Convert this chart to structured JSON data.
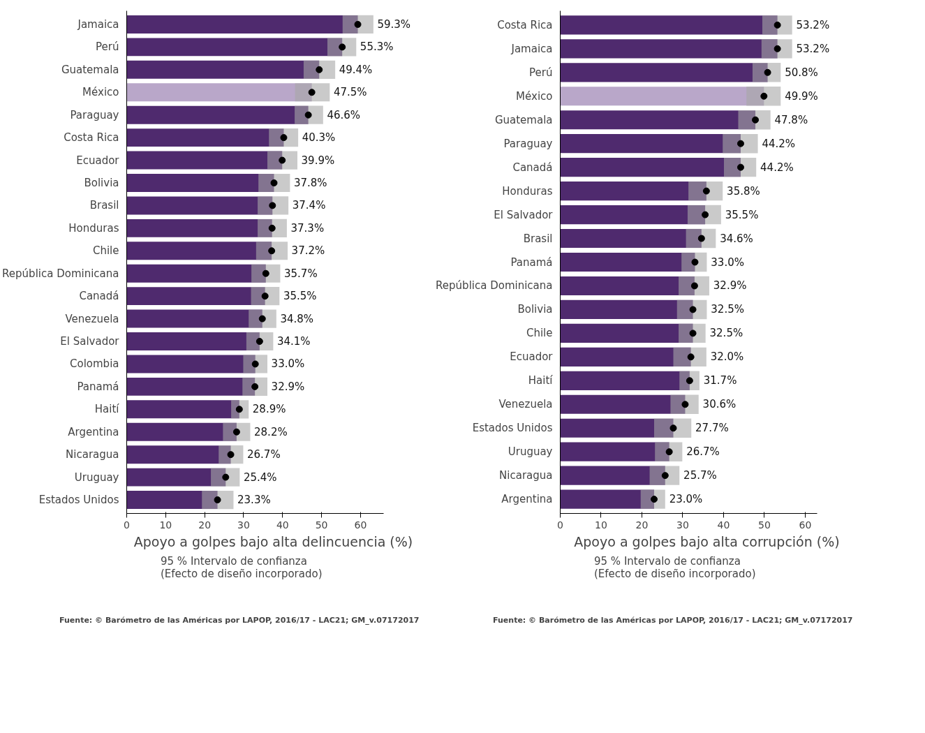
{
  "chart_data": [
    {
      "type": "bar",
      "orientation": "horizontal",
      "xlabel": "Apoyo a golpes bajo alta delincuencia (%)",
      "legend_title": "95 % Intervalo de confianza\n(Efecto de diseño incorporado)",
      "xlim": [
        0,
        66
      ],
      "xticks": [
        0,
        10,
        20,
        30,
        40,
        50,
        60
      ],
      "grid": false,
      "categories": [
        "Jamaica",
        "Perú",
        "Guatemala",
        "México",
        "Paraguay",
        "Costa Rica",
        "Ecuador",
        "Bolivia",
        "Brasil",
        "Honduras",
        "Chile",
        "República Dominicana",
        "Canadá",
        "Venezuela",
        "El Salvador",
        "Colombia",
        "Panamá",
        "Haití",
        "Argentina",
        "Nicaragua",
        "Uruguay",
        "Estados Unidos"
      ],
      "series": [
        {
          "type": "bar",
          "values": [
            59.3,
            55.3,
            49.4,
            47.5,
            46.6,
            40.3,
            39.9,
            37.8,
            37.4,
            37.3,
            37.2,
            35.7,
            35.5,
            34.8,
            34.1,
            33.0,
            32.9,
            28.9,
            28.2,
            26.7,
            25.4,
            23.3
          ],
          "value_labels": [
            "59.3%",
            "55.3%",
            "49.4%",
            "47.5%",
            "46.6%",
            "40.3%",
            "39.9%",
            "37.8%",
            "37.4%",
            "37.3%",
            "37.2%",
            "35.7%",
            "35.5%",
            "34.8%",
            "34.1%",
            "33.0%",
            "32.9%",
            "28.9%",
            "28.2%",
            "26.7%",
            "25.4%",
            "23.3%"
          ],
          "errors": [
            [
              55.4,
              63.3
            ],
            [
              51.5,
              58.9
            ],
            [
              45.4,
              53.5
            ],
            [
              43.2,
              52.1
            ],
            [
              43.1,
              50.4
            ],
            [
              36.5,
              44.0
            ],
            [
              36.1,
              43.8
            ],
            [
              33.8,
              41.9
            ],
            [
              33.6,
              41.5
            ],
            [
              33.6,
              41.1
            ],
            [
              33.2,
              41.3
            ],
            [
              32.0,
              39.4
            ],
            [
              31.9,
              39.2
            ],
            [
              31.3,
              38.4
            ],
            [
              30.7,
              37.6
            ],
            [
              29.9,
              36.1
            ],
            [
              29.7,
              36.1
            ],
            [
              26.8,
              31.3
            ],
            [
              24.7,
              31.7
            ],
            [
              23.6,
              29.9
            ],
            [
              21.6,
              29.0
            ],
            [
              19.3,
              27.4
            ]
          ],
          "colors": [
            "#4f2a6e",
            "#4f2a6e",
            "#4f2a6e",
            "#b9a7c9",
            "#4f2a6e",
            "#4f2a6e",
            "#4f2a6e",
            "#4f2a6e",
            "#4f2a6e",
            "#4f2a6e",
            "#4f2a6e",
            "#4f2a6e",
            "#4f2a6e",
            "#4f2a6e",
            "#4f2a6e",
            "#4f2a6e",
            "#4f2a6e",
            "#4f2a6e",
            "#4f2a6e",
            "#4f2a6e",
            "#4f2a6e",
            "#4f2a6e"
          ]
        },
        {
          "type": "scatter",
          "marker": "circle",
          "color": "#000000",
          "values": [
            59.3,
            55.3,
            49.4,
            47.5,
            46.6,
            40.3,
            39.9,
            37.8,
            37.4,
            37.3,
            37.2,
            35.7,
            35.5,
            34.8,
            34.1,
            33.0,
            32.9,
            28.9,
            28.2,
            26.7,
            25.4,
            23.3
          ]
        }
      ],
      "annotations": [
        "Fuente: © Barómetro de las Américas por LAPOP, 2016/17 - LAC21; GM_v.07172017"
      ]
    },
    {
      "type": "bar",
      "orientation": "horizontal",
      "xlabel": "Apoyo a golpes bajo alta corrupción (%)",
      "legend_title": "95 % Intervalo de confianza\n(Efecto de diseño incorporado)",
      "xlim": [
        0,
        63
      ],
      "xticks": [
        0,
        10,
        20,
        30,
        40,
        50,
        60
      ],
      "grid": false,
      "categories": [
        "Costa Rica",
        "Jamaica",
        "Perú",
        "México",
        "Guatemala",
        "Paraguay",
        "Canadá",
        "Honduras",
        "El Salvador",
        "Brasil",
        "Panamá",
        "República Dominicana",
        "Bolivia",
        "Chile",
        "Ecuador",
        "Haití",
        "Venezuela",
        "Estados Unidos",
        "Uruguay",
        "Nicaragua",
        "Argentina"
      ],
      "series": [
        {
          "type": "bar",
          "values": [
            53.2,
            53.2,
            50.8,
            49.9,
            47.8,
            44.2,
            44.2,
            35.8,
            35.5,
            34.6,
            33.0,
            32.9,
            32.5,
            32.5,
            32.0,
            31.7,
            30.6,
            27.7,
            26.7,
            25.7,
            23.0
          ],
          "value_labels": [
            "53.2%",
            "53.2%",
            "50.8%",
            "49.9%",
            "47.8%",
            "44.2%",
            "44.2%",
            "35.8%",
            "35.5%",
            "34.6%",
            "33.0%",
            "32.9%",
            "32.5%",
            "32.5%",
            "32.0%",
            "31.7%",
            "30.6%",
            "27.7%",
            "26.7%",
            "25.7%",
            "23.0%"
          ],
          "errors": [
            [
              49.5,
              56.8
            ],
            [
              49.3,
              56.8
            ],
            [
              47.1,
              54.0
            ],
            [
              45.6,
              54.0
            ],
            [
              43.6,
              51.5
            ],
            [
              39.8,
              48.4
            ],
            [
              40.1,
              48.0
            ],
            [
              31.4,
              39.8
            ],
            [
              31.2,
              39.4
            ],
            [
              30.8,
              38.1
            ],
            [
              29.7,
              35.9
            ],
            [
              29.0,
              36.5
            ],
            [
              28.6,
              35.9
            ],
            [
              29.0,
              35.6
            ],
            [
              27.7,
              35.8
            ],
            [
              29.2,
              34.1
            ],
            [
              27.0,
              33.9
            ],
            [
              23.0,
              32.1
            ],
            [
              23.2,
              29.9
            ],
            [
              21.9,
              29.2
            ],
            [
              19.7,
              25.7
            ]
          ],
          "colors": [
            "#4f2a6e",
            "#4f2a6e",
            "#4f2a6e",
            "#b9a7c9",
            "#4f2a6e",
            "#4f2a6e",
            "#4f2a6e",
            "#4f2a6e",
            "#4f2a6e",
            "#4f2a6e",
            "#4f2a6e",
            "#4f2a6e",
            "#4f2a6e",
            "#4f2a6e",
            "#4f2a6e",
            "#4f2a6e",
            "#4f2a6e",
            "#4f2a6e",
            "#4f2a6e",
            "#4f2a6e",
            "#4f2a6e"
          ]
        },
        {
          "type": "scatter",
          "marker": "circle",
          "color": "#000000",
          "values": [
            53.2,
            53.2,
            50.8,
            49.9,
            47.8,
            44.2,
            44.2,
            35.8,
            35.5,
            34.6,
            33.0,
            32.9,
            32.5,
            32.5,
            32.0,
            31.7,
            30.6,
            27.7,
            26.7,
            25.7,
            23.0
          ]
        }
      ],
      "annotations": [
        "Fuente: © Barómetro de las Américas por LAPOP, 2016/17 - LAC21; GM_v.07172017"
      ]
    }
  ]
}
